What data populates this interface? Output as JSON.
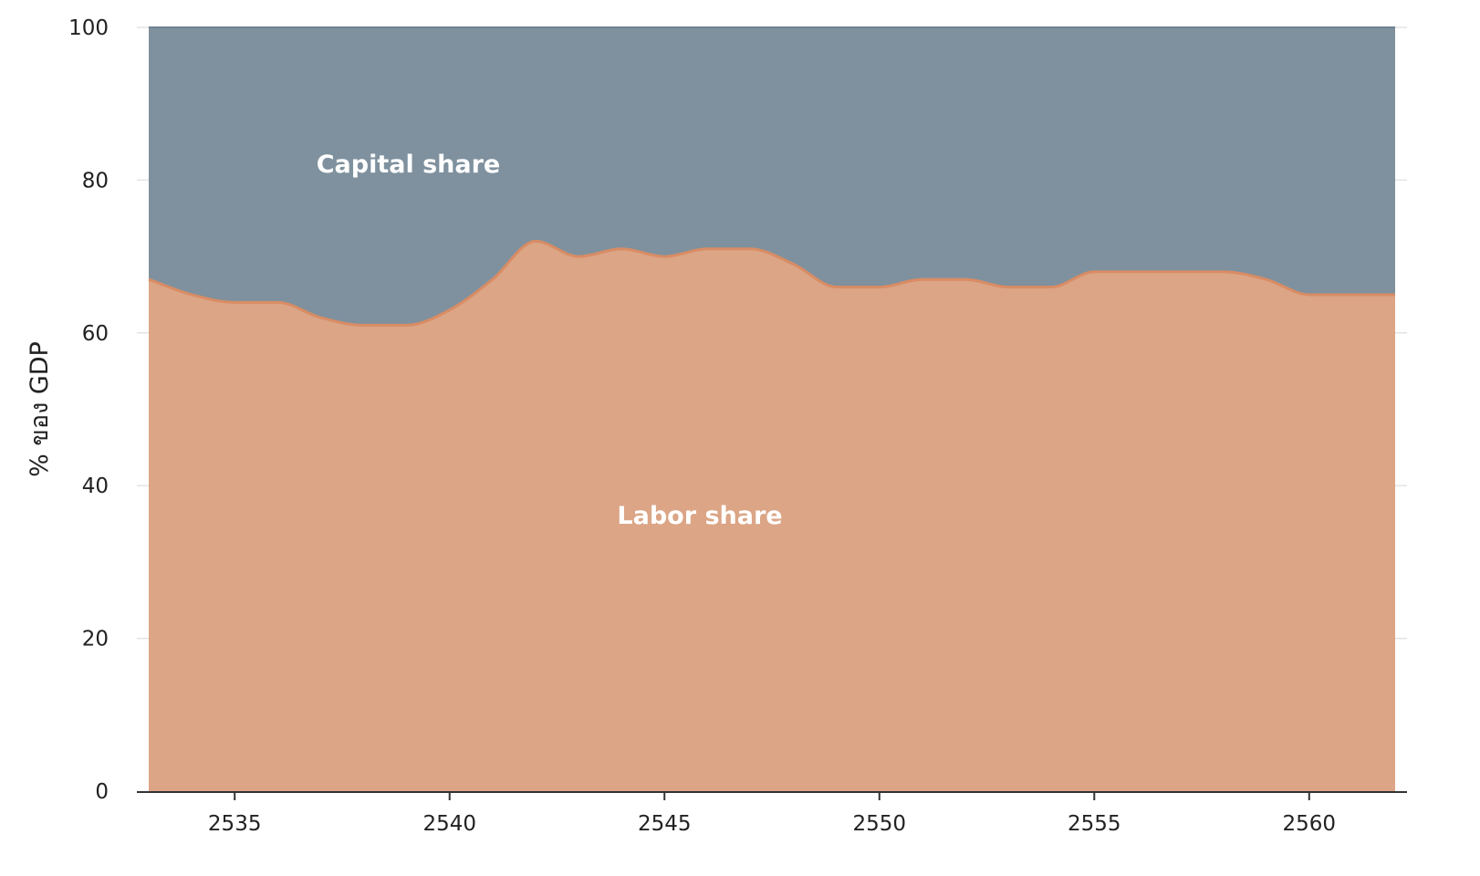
{
  "chart_data": {
    "type": "area",
    "stacked": true,
    "xlabel": "",
    "ylabel": "% ของ GDP",
    "xlim": [
      2533,
      2562
    ],
    "ylim": [
      0,
      100
    ],
    "x_ticks": [
      2535,
      2540,
      2545,
      2550,
      2555,
      2560
    ],
    "y_ticks": [
      0,
      20,
      40,
      60,
      80,
      100
    ],
    "grid": "horizontal",
    "legend": "none",
    "x": [
      2533,
      2534,
      2535,
      2536,
      2537,
      2538,
      2539,
      2540,
      2541,
      2542,
      2543,
      2544,
      2545,
      2546,
      2547,
      2548,
      2549,
      2550,
      2551,
      2552,
      2553,
      2554,
      2555,
      2556,
      2557,
      2558,
      2559,
      2560,
      2561,
      2562
    ],
    "series": [
      {
        "name": "Labor share",
        "color": "#dba586",
        "line_color": "#d98c64",
        "values": [
          67,
          65,
          64,
          64,
          62,
          61,
          61,
          63,
          67,
          72,
          70,
          71,
          70,
          71,
          71,
          69,
          66,
          66,
          67,
          67,
          66,
          66,
          68,
          68,
          68,
          68,
          67,
          65,
          65,
          65
        ]
      },
      {
        "name": "Capital share",
        "color": "#7f919e",
        "values": [
          33,
          35,
          36,
          36,
          38,
          39,
          39,
          37,
          33,
          28,
          30,
          29,
          30,
          29,
          29,
          31,
          34,
          34,
          33,
          33,
          34,
          34,
          32,
          32,
          32,
          32,
          33,
          35,
          35,
          35
        ]
      }
    ],
    "annotations": [
      {
        "text": "Capital share",
        "x": 2536.9,
        "y": 81
      },
      {
        "text": "Labor share",
        "x": 2543.9,
        "y": 35
      }
    ]
  }
}
